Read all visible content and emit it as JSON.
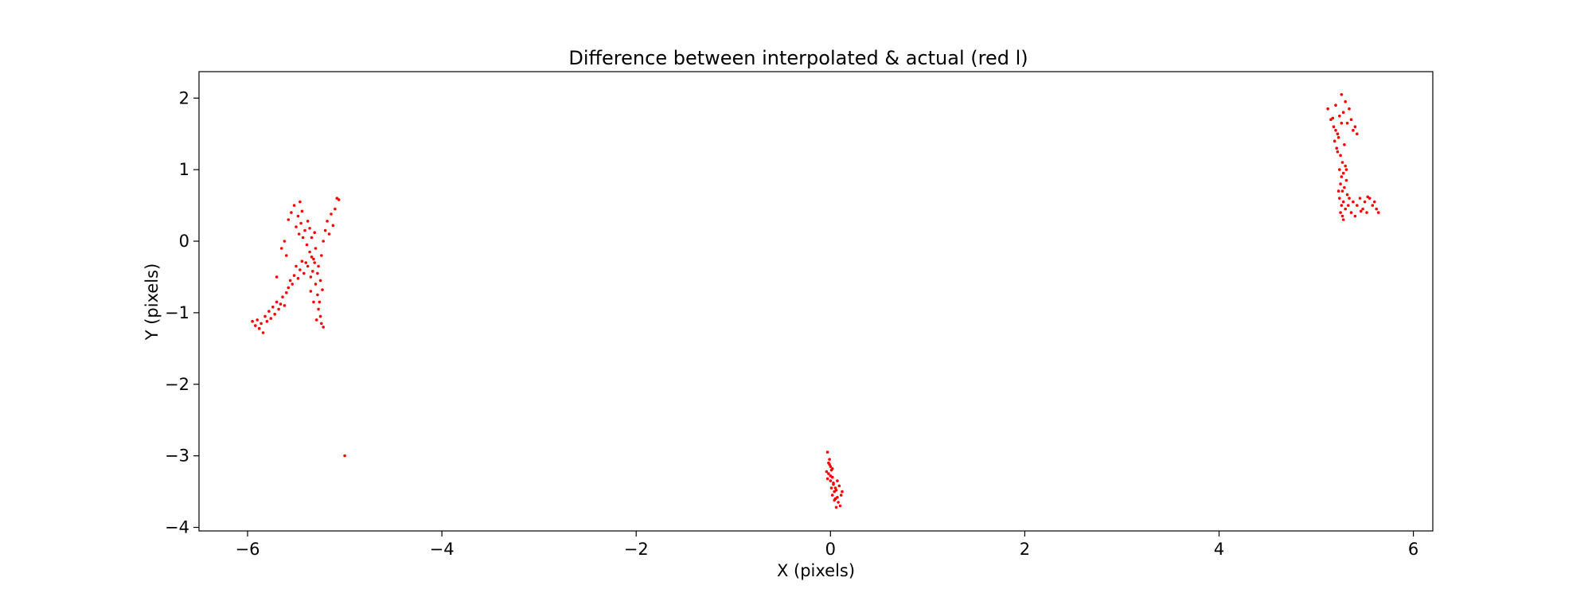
{
  "chart_data": {
    "type": "scatter",
    "title": "Difference between interpolated & actual (red l)",
    "xlabel": "X (pixels)",
    "ylabel": "Y (pixels)",
    "xlim": [
      -6.5,
      6.2
    ],
    "ylim": [
      -4.05,
      2.37
    ],
    "xticks": [
      {
        "value": -6,
        "label": "−6"
      },
      {
        "value": -4,
        "label": "−4"
      },
      {
        "value": -2,
        "label": "−2"
      },
      {
        "value": 0,
        "label": "0"
      },
      {
        "value": 2,
        "label": "2"
      },
      {
        "value": 4,
        "label": "4"
      },
      {
        "value": 6,
        "label": "6"
      }
    ],
    "yticks": [
      {
        "value": -4,
        "label": "−4"
      },
      {
        "value": -3,
        "label": "−3"
      },
      {
        "value": -2,
        "label": "−2"
      },
      {
        "value": -1,
        "label": "−1"
      },
      {
        "value": 0,
        "label": "0"
      },
      {
        "value": 1,
        "label": "1"
      },
      {
        "value": 2,
        "label": "2"
      }
    ],
    "grid": false,
    "marker_color": "#ff0000",
    "series": [
      {
        "points": [
          [
            -5.95,
            -1.12
          ],
          [
            -5.92,
            -1.18
          ],
          [
            -5.9,
            -1.1
          ],
          [
            -5.88,
            -1.22
          ],
          [
            -5.86,
            -1.15
          ],
          [
            -5.84,
            -1.28
          ],
          [
            -5.82,
            -1.05
          ],
          [
            -5.8,
            -1.12
          ],
          [
            -5.78,
            -0.98
          ],
          [
            -5.76,
            -1.08
          ],
          [
            -5.74,
            -0.92
          ],
          [
            -5.72,
            -1.02
          ],
          [
            -5.7,
            -0.85
          ],
          [
            -5.68,
            -0.95
          ],
          [
            -5.66,
            -0.88
          ],
          [
            -5.64,
            -0.78
          ],
          [
            -5.62,
            -0.9
          ],
          [
            -5.6,
            -0.72
          ],
          [
            -5.58,
            -0.65
          ],
          [
            -5.56,
            -0.55
          ],
          [
            -5.54,
            -0.6
          ],
          [
            -5.52,
            -0.48
          ],
          [
            -5.5,
            -0.35
          ],
          [
            -5.48,
            -0.52
          ],
          [
            -5.46,
            -0.4
          ],
          [
            -5.44,
            -0.28
          ],
          [
            -5.42,
            -0.45
          ],
          [
            -5.4,
            -0.3
          ],
          [
            -5.58,
            0.3
          ],
          [
            -5.55,
            0.4
          ],
          [
            -5.52,
            0.5
          ],
          [
            -5.5,
            0.2
          ],
          [
            -5.48,
            0.35
          ],
          [
            -5.46,
            0.55
          ],
          [
            -5.44,
            0.42
          ],
          [
            -5.47,
            0.1
          ],
          [
            -5.45,
            0.25
          ],
          [
            -5.43,
            0.05
          ],
          [
            -5.41,
            0.15
          ],
          [
            -5.39,
            -0.05
          ],
          [
            -5.38,
            0.28
          ],
          [
            -5.36,
            0.18
          ],
          [
            -5.36,
            -0.15
          ],
          [
            -5.34,
            0.05
          ],
          [
            -5.32,
            -0.25
          ],
          [
            -5.3,
            -0.1
          ],
          [
            -5.38,
            -0.35
          ],
          [
            -5.35,
            -0.5
          ],
          [
            -5.33,
            -0.42
          ],
          [
            -5.31,
            -0.3
          ],
          [
            -5.3,
            -0.6
          ],
          [
            -5.28,
            -0.45
          ],
          [
            -5.28,
            -0.75
          ],
          [
            -5.26,
            -0.85
          ],
          [
            -5.25,
            -1.05
          ],
          [
            -5.27,
            -0.95
          ],
          [
            -5.24,
            -1.15
          ],
          [
            -5.22,
            -1.2
          ],
          [
            -5.25,
            -0.55
          ],
          [
            -5.23,
            -0.68
          ],
          [
            -5.24,
            -0.2
          ],
          [
            -5.22,
            0.0
          ],
          [
            -5.2,
            0.15
          ],
          [
            -5.18,
            0.28
          ],
          [
            -5.16,
            0.1
          ],
          [
            -5.14,
            0.38
          ],
          [
            -5.12,
            0.22
          ],
          [
            -5.1,
            0.45
          ],
          [
            -5.08,
            0.6
          ],
          [
            -5.06,
            0.58
          ],
          [
            -5.65,
            -0.1
          ],
          [
            -5.62,
            0.0
          ],
          [
            -5.6,
            -0.2
          ],
          [
            -5.7,
            -0.5
          ],
          [
            -5.35,
            -0.7
          ],
          [
            -5.32,
            -0.85
          ],
          [
            -5.29,
            -1.1
          ],
          [
            -5.27,
            -0.35
          ],
          [
            -5.31,
            0.12
          ],
          [
            -5.34,
            -0.22
          ],
          [
            -5.0,
            -3.0
          ],
          [
            -0.02,
            -3.1
          ],
          [
            0.0,
            -3.15
          ],
          [
            -0.03,
            -2.95
          ],
          [
            0.01,
            -3.2
          ],
          [
            -0.01,
            -3.05
          ],
          [
            0.02,
            -3.3
          ],
          [
            0.0,
            -3.35
          ],
          [
            -0.02,
            -3.25
          ],
          [
            0.03,
            -3.4
          ],
          [
            0.01,
            -3.45
          ],
          [
            0.04,
            -3.5
          ],
          [
            0.02,
            -3.55
          ],
          [
            0.05,
            -3.6
          ],
          [
            0.03,
            -3.38
          ],
          [
            0.06,
            -3.48
          ],
          [
            0.07,
            -3.58
          ],
          [
            0.08,
            -3.65
          ],
          [
            0.1,
            -3.7
          ],
          [
            0.12,
            -3.5
          ],
          [
            0.09,
            -3.42
          ],
          [
            -0.04,
            -3.22
          ],
          [
            -0.03,
            -3.32
          ],
          [
            0.0,
            -3.28
          ],
          [
            0.04,
            -3.62
          ],
          [
            0.06,
            -3.72
          ],
          [
            0.02,
            -3.18
          ],
          [
            -0.01,
            -3.12
          ],
          [
            0.05,
            -3.45
          ],
          [
            0.11,
            -3.55
          ],
          [
            0.07,
            -3.35
          ],
          [
            5.12,
            1.85
          ],
          [
            5.15,
            1.7
          ],
          [
            5.18,
            1.6
          ],
          [
            5.2,
            1.9
          ],
          [
            5.22,
            1.5
          ],
          [
            5.24,
            1.75
          ],
          [
            5.26,
            2.05
          ],
          [
            5.28,
            1.8
          ],
          [
            5.3,
            1.95
          ],
          [
            5.32,
            1.65
          ],
          [
            5.34,
            1.85
          ],
          [
            5.36,
            1.7
          ],
          [
            5.38,
            1.55
          ],
          [
            5.4,
            1.6
          ],
          [
            5.42,
            1.5
          ],
          [
            5.19,
            1.4
          ],
          [
            5.21,
            1.3
          ],
          [
            5.23,
            1.45
          ],
          [
            5.25,
            1.2
          ],
          [
            5.27,
            1.1
          ],
          [
            5.24,
            1.0
          ],
          [
            5.26,
            0.9
          ],
          [
            5.28,
            0.95
          ],
          [
            5.25,
            0.8
          ],
          [
            5.27,
            0.7
          ],
          [
            5.24,
            0.6
          ],
          [
            5.26,
            0.5
          ],
          [
            5.28,
            0.55
          ],
          [
            5.25,
            0.4
          ],
          [
            5.27,
            0.35
          ],
          [
            5.3,
            0.45
          ],
          [
            5.33,
            0.5
          ],
          [
            5.36,
            0.4
          ],
          [
            5.38,
            0.55
          ],
          [
            5.4,
            0.35
          ],
          [
            5.42,
            0.5
          ],
          [
            5.45,
            0.6
          ],
          [
            5.48,
            0.45
          ],
          [
            5.5,
            0.55
          ],
          [
            5.52,
            0.4
          ],
          [
            5.55,
            0.6
          ],
          [
            5.58,
            0.5
          ],
          [
            5.6,
            0.55
          ],
          [
            5.62,
            0.45
          ],
          [
            5.64,
            0.4
          ],
          [
            5.29,
            0.75
          ],
          [
            5.31,
            0.85
          ],
          [
            5.3,
            1.05
          ],
          [
            5.32,
            0.65
          ],
          [
            5.22,
            1.25
          ],
          [
            5.2,
            1.55
          ],
          [
            5.29,
            1.35
          ],
          [
            5.23,
            0.7
          ],
          [
            5.26,
            1.65
          ],
          [
            5.31,
            1.0
          ],
          [
            5.34,
            0.6
          ],
          [
            5.46,
            0.42
          ],
          [
            5.53,
            0.62
          ],
          [
            5.28,
            0.3
          ],
          [
            5.17,
            1.72
          ]
        ]
      }
    ]
  }
}
